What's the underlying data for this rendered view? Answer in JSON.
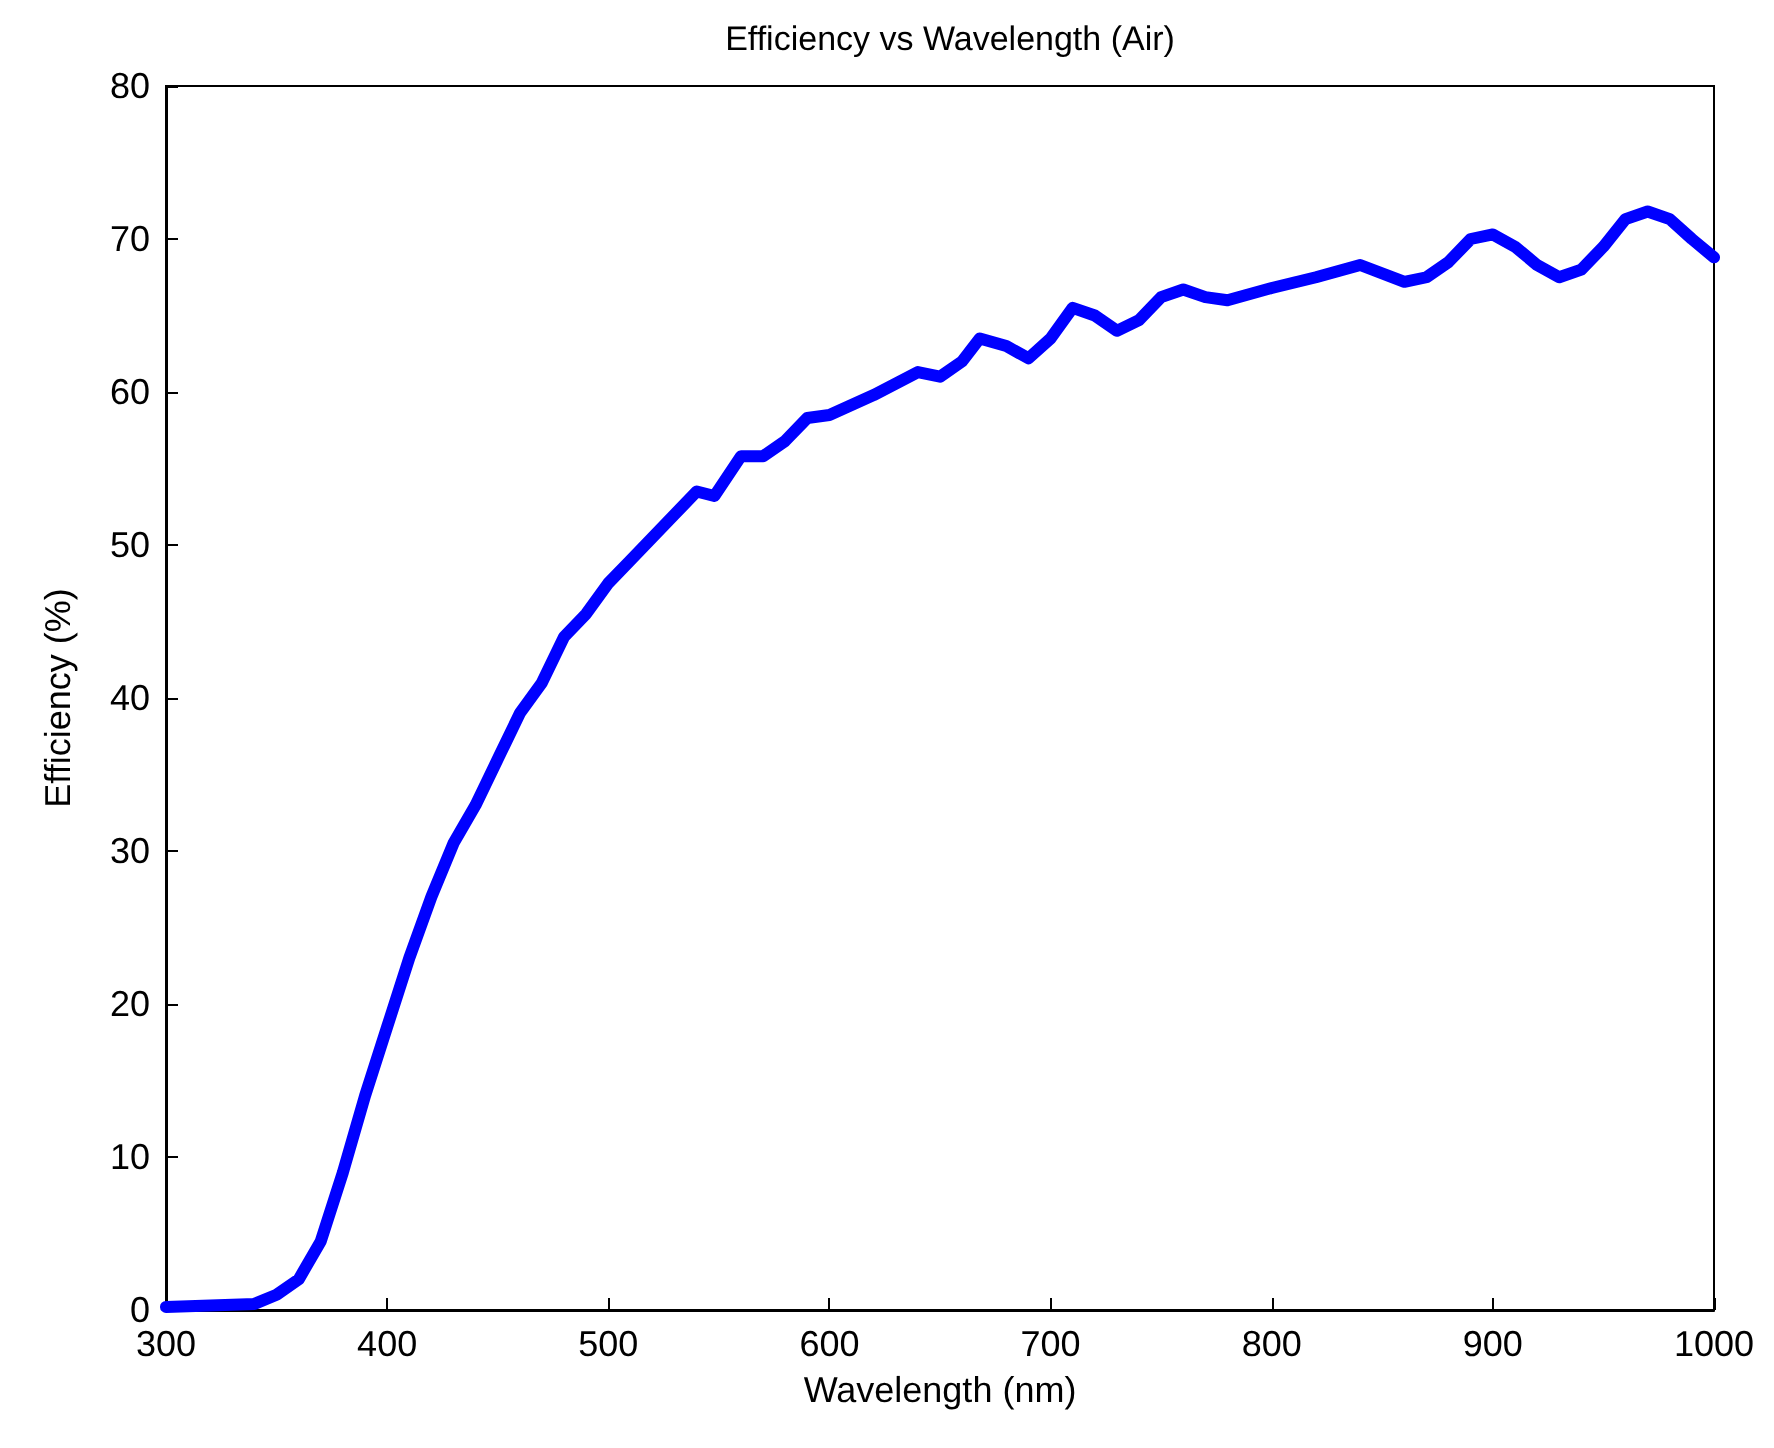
{
  "chart_data": {
    "type": "line",
    "title": "Efficiency vs Wavelength (Air)",
    "xlabel": "Wavelength (nm)",
    "ylabel": "Efficiency (%)",
    "x": [
      300,
      320,
      340,
      350,
      360,
      370,
      380,
      390,
      400,
      410,
      420,
      430,
      440,
      450,
      460,
      470,
      480,
      490,
      500,
      510,
      520,
      530,
      540,
      548,
      560,
      570,
      580,
      590,
      600,
      620,
      640,
      650,
      660,
      668,
      680,
      690,
      700,
      710,
      720,
      730,
      740,
      750,
      760,
      770,
      780,
      800,
      820,
      840,
      860,
      870,
      880,
      890,
      900,
      910,
      920,
      930,
      940,
      950,
      960,
      970,
      980,
      990,
      1000
    ],
    "series": [
      {
        "color": "#0000ff",
        "values": [
          0.2,
          0.3,
          0.4,
          1,
          2,
          4.5,
          9,
          14,
          18.5,
          23,
          27,
          30.5,
          33,
          36,
          39,
          41,
          44,
          45.5,
          47.5,
          49,
          50.5,
          52,
          53.5,
          53.2,
          55.8,
          55.8,
          56.8,
          58.3,
          58.5,
          59.8,
          61.3,
          61,
          62,
          63.5,
          63,
          62.2,
          63.5,
          65.5,
          65,
          64,
          64.7,
          66.2,
          66.7,
          66.2,
          66,
          66.8,
          67.5,
          68.3,
          67.2,
          67.5,
          68.5,
          70,
          70.3,
          69.5,
          68.3,
          67.5,
          68,
          69.5,
          71.3,
          71.8,
          71.3,
          70,
          68.8
        ]
      }
    ],
    "xlim": [
      300,
      1000
    ],
    "xticks": [
      300,
      400,
      500,
      600,
      700,
      800,
      900,
      1000
    ],
    "ylim": [
      0,
      80
    ],
    "yticks": [
      0,
      10,
      20,
      30,
      40,
      50,
      60,
      70,
      80
    ],
    "grid": false,
    "marker": "none",
    "line_style": "solid"
  }
}
